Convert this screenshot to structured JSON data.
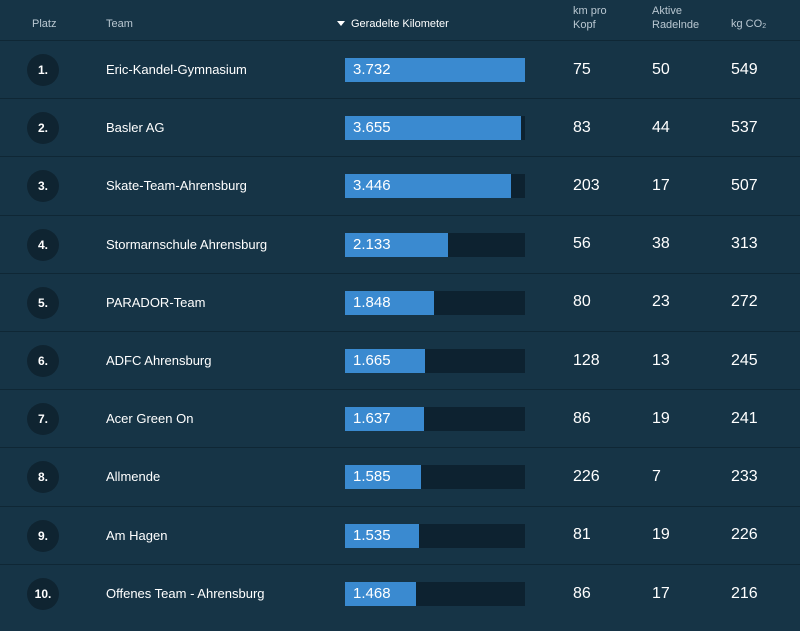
{
  "header": {
    "platz": "Platz",
    "team": "Team",
    "km": "Geradelte Kilometer",
    "km_pro_kopf_line1": "km pro",
    "km_pro_kopf_line2": "Kopf",
    "aktive_line1": "Aktive",
    "aktive_line2": "Radelnde",
    "co2_prefix": "kg CO",
    "co2_sub": "2",
    "sort_icon": "sort-descending-icon"
  },
  "colors": {
    "background": "#163446",
    "bar": "#3a8ad0",
    "bar_track": "#0d2230",
    "rank_badge": "#0f2431"
  },
  "bar_max_km": 3732,
  "rows": [
    {
      "rank": "1.",
      "team": "Eric-Kandel-Gymnasium",
      "km": "3.732",
      "km_value": 3732,
      "km_pro_kopf": "75",
      "aktive": "50",
      "co2": "549"
    },
    {
      "rank": "2.",
      "team": "Basler AG",
      "km": "3.655",
      "km_value": 3655,
      "km_pro_kopf": "83",
      "aktive": "44",
      "co2": "537"
    },
    {
      "rank": "3.",
      "team": "Skate-Team-Ahrensburg",
      "km": "3.446",
      "km_value": 3446,
      "km_pro_kopf": "203",
      "aktive": "17",
      "co2": "507"
    },
    {
      "rank": "4.",
      "team": "Stormarnschule Ahrensburg",
      "km": "2.133",
      "km_value": 2133,
      "km_pro_kopf": "56",
      "aktive": "38",
      "co2": "313"
    },
    {
      "rank": "5.",
      "team": "PARADOR-Team",
      "km": "1.848",
      "km_value": 1848,
      "km_pro_kopf": "80",
      "aktive": "23",
      "co2": "272"
    },
    {
      "rank": "6.",
      "team": "ADFC Ahrensburg",
      "km": "1.665",
      "km_value": 1665,
      "km_pro_kopf": "128",
      "aktive": "13",
      "co2": "245"
    },
    {
      "rank": "7.",
      "team": "Acer Green On",
      "km": "1.637",
      "km_value": 1637,
      "km_pro_kopf": "86",
      "aktive": "19",
      "co2": "241"
    },
    {
      "rank": "8.",
      "team": "Allmende",
      "km": "1.585",
      "km_value": 1585,
      "km_pro_kopf": "226",
      "aktive": "7",
      "co2": "233"
    },
    {
      "rank": "9.",
      "team": "Am Hagen",
      "km": "1.535",
      "km_value": 1535,
      "km_pro_kopf": "81",
      "aktive": "19",
      "co2": "226"
    },
    {
      "rank": "10.",
      "team": "Offenes Team - Ahrensburg",
      "km": "1.468",
      "km_value": 1468,
      "km_pro_kopf": "86",
      "aktive": "17",
      "co2": "216"
    }
  ]
}
